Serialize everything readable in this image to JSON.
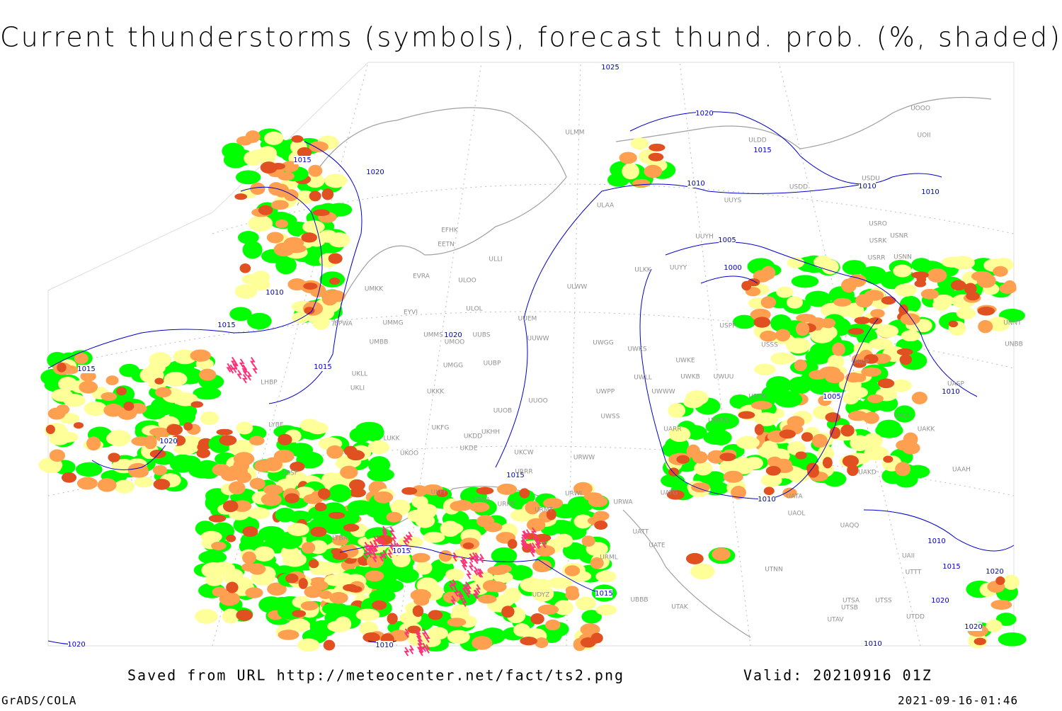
{
  "title": "Current thunderstorms (symbols), forecast thund. prob. (%, shaded)",
  "footer": {
    "source": "Saved from URL http://meteocenter.net/fact/ts2.png",
    "valid": "Valid: 20210916 01Z",
    "software": "GrADS/COLA",
    "timestamp": "2021-09-16-01:46"
  },
  "isobar_labels": [
    "1025",
    "1020",
    "1020",
    "1015",
    "1015",
    "1010",
    "1010",
    "1010",
    "1005",
    "1000",
    "1010",
    "1015",
    "1015",
    "1015",
    "1020",
    "1020",
    "1015",
    "1015",
    "1015",
    "1005",
    "1010",
    "1010",
    "1010",
    "1015",
    "1020",
    "1020",
    "1020",
    "1010",
    "1020",
    "1010"
  ],
  "stations": [
    "ULMM",
    "ULDD",
    "UUYS",
    "USDD",
    "USDU",
    "ULAA",
    "UUYH",
    "USRO",
    "USRK",
    "USNR",
    "USRR",
    "USNN",
    "EFHK",
    "EETN",
    "ULLI",
    "EVRA",
    "ULOO",
    "UMKK",
    "ULOL",
    "EYVI",
    "ULWW",
    "ULKK",
    "UUYY",
    "UMMG",
    "EPWA",
    "UMMS",
    "UUBS",
    "UMOO",
    "UUEM",
    "UUWW",
    "UMBB",
    "UWGG",
    "UWKS",
    "USPP",
    "USSS",
    "UWKE",
    "UWKB",
    "UWUU",
    "UMGG",
    "UUBP",
    "UKLL",
    "UKLI",
    "UWLL",
    "UWWW",
    "USCN",
    "UKKK",
    "UUOO",
    "UWPP",
    "UUOB",
    "UWSS",
    "UWOO",
    "UARR",
    "UKHH",
    "UKDD",
    "UKFG",
    "UKDE",
    "URWW",
    "UKCW",
    "UKOO",
    "LUKK",
    "URRR",
    "UKFF",
    "URKK",
    "URKA",
    "URWI",
    "UATG",
    "URMT",
    "UATA",
    "URWA",
    "UAOL",
    "UAQQ",
    "UATT",
    "UATE",
    "URML",
    "UTNN",
    "UBBB",
    "UTAK",
    "UTSA",
    "UTSS",
    "UTSB",
    "UTDD",
    "UTAV",
    "UAII",
    "UTTT",
    "UAAH",
    "UAKD",
    "UAKK",
    "UACC",
    "UACP",
    "UASP",
    "UNNT",
    "UNBB",
    "LBSF",
    "LYBE",
    "LHBP",
    "LTBA",
    "UDYZ",
    "UOOO",
    "UOII"
  ]
}
